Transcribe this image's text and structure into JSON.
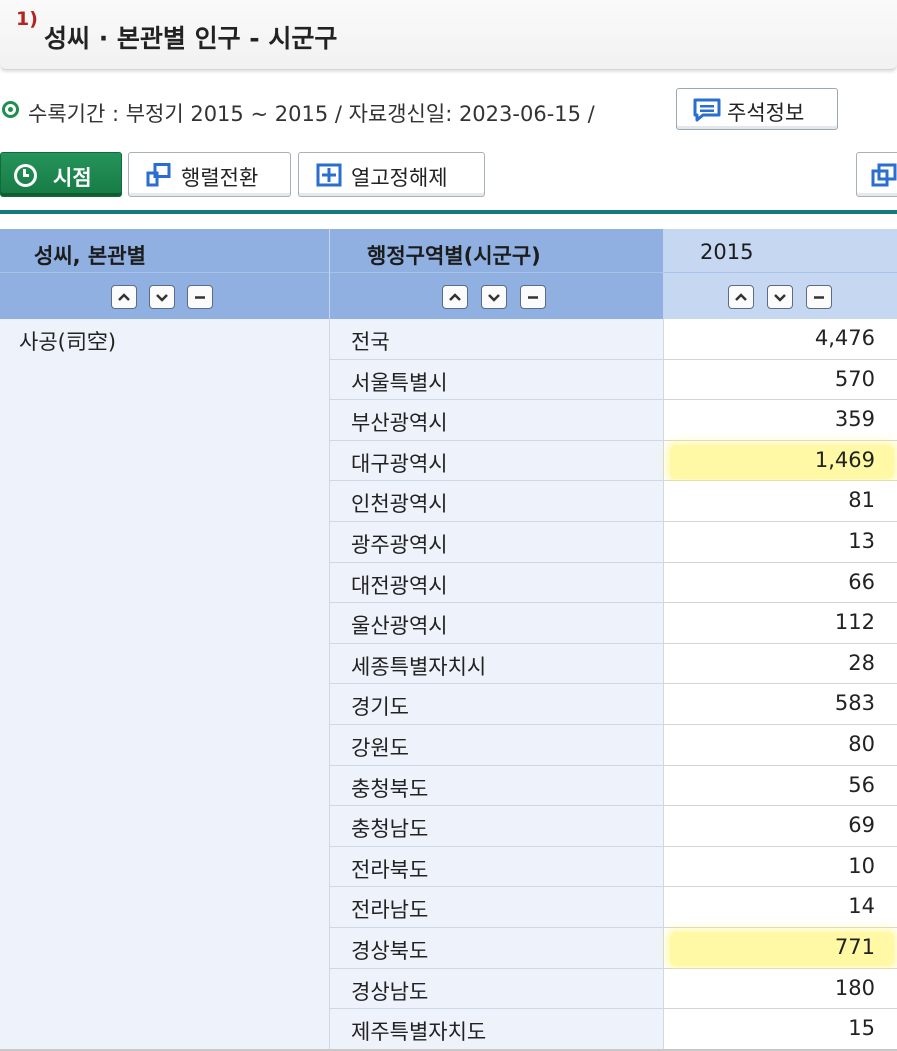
{
  "title": {
    "footnote": "1)",
    "text": "성씨 · 본관별 인구 - 시군구"
  },
  "period": {
    "text": "수록기간 : 부정기 2015 ~ 2015 / 자료갱신일: 2023-06-15 /",
    "note_button": "주석정보"
  },
  "toolbar": {
    "time_label": "시점",
    "pivot_label": "행렬전환",
    "unfix_label": "열고정해제"
  },
  "table": {
    "headers": [
      "성씨, 본관별",
      "행정구역별(시군구)",
      "2015"
    ],
    "group_label": "사공(司空)",
    "rows": [
      {
        "region": "전국",
        "value": "4,476",
        "highlight": false
      },
      {
        "region": "서울특별시",
        "value": "570",
        "highlight": false
      },
      {
        "region": "부산광역시",
        "value": "359",
        "highlight": false
      },
      {
        "region": "대구광역시",
        "value": "1,469",
        "highlight": true
      },
      {
        "region": "인천광역시",
        "value": "81",
        "highlight": false
      },
      {
        "region": "광주광역시",
        "value": "13",
        "highlight": false
      },
      {
        "region": "대전광역시",
        "value": "66",
        "highlight": false
      },
      {
        "region": "울산광역시",
        "value": "112",
        "highlight": false
      },
      {
        "region": "세종특별자치시",
        "value": "28",
        "highlight": false
      },
      {
        "region": "경기도",
        "value": "583",
        "highlight": false
      },
      {
        "region": "강원도",
        "value": "80",
        "highlight": false
      },
      {
        "region": "충청북도",
        "value": "56",
        "highlight": false
      },
      {
        "region": "충청남도",
        "value": "69",
        "highlight": false
      },
      {
        "region": "전라북도",
        "value": "10",
        "highlight": false
      },
      {
        "region": "전라남도",
        "value": "14",
        "highlight": false
      },
      {
        "region": "경상북도",
        "value": "771",
        "highlight": true
      },
      {
        "region": "경상남도",
        "value": "180",
        "highlight": false
      },
      {
        "region": "제주특별자치도",
        "value": "15",
        "highlight": false
      }
    ]
  },
  "colors": {
    "accent_green": "#1f8e4e",
    "header_blue": "#8fb0e1",
    "teal_line": "#177a7a",
    "highlight": "#fff35a"
  },
  "icons": [
    "clock-icon",
    "pivot-icon",
    "unfix-icon",
    "note-icon",
    "sort-up-icon",
    "sort-down-icon",
    "collapse-icon",
    "expand-window-icon"
  ]
}
